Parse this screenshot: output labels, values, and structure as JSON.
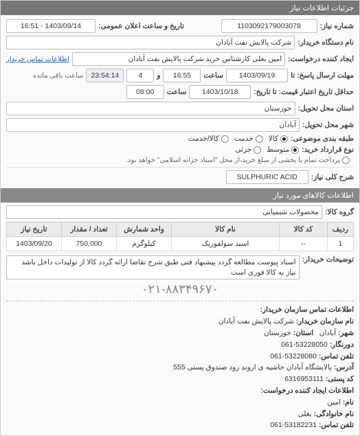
{
  "header": {
    "title": "جزئیات اطلاعات نیاز"
  },
  "form": {
    "request_no_label": "شماره نیاز:",
    "request_no": "1103092179003078",
    "announce_datetime_label": "تاریخ و ساعت اعلان عمومی:",
    "announce_datetime": "1403/09/14 - 16:51",
    "buyer_org_label": "نام دستگاه خریدار:",
    "buyer_org": "شرکت پالایش نفت آبادان",
    "request_creator_label": "ایجاد کننده درخواست:",
    "request_creator": "امین بغلی کارشناس خرید شرکت پالایش نفت آبادان",
    "buyer_contact_link": "اطلاعات تماس خریدار",
    "reply_deadline_label": "مهلت ارسال پاسخ: تا",
    "reply_deadline_date": "1403/09/19",
    "time_label": "ساعت",
    "reply_deadline_time": "16:55",
    "and_label": "و",
    "days_remaining": "4",
    "remaining_time": "23:54:14",
    "remaining_time_suffix": "ساعت باقی مانده",
    "validity_label": "حداقل تاریخ اعتبار قیمت: تا تاریخ:",
    "validity_date": "1403/10/18",
    "validity_time": "08:00",
    "province_label": "استان محل تحویل:",
    "province": "خوزستان",
    "city_label": "شهر محل تحویل:",
    "city": "آبادان",
    "subject_class_label": "طبقه بندی موضوعی:",
    "subject_opts": {
      "goods": "کالا",
      "service": "خدمت",
      "both": "کالا/خدمت"
    },
    "contract_type_label": "نوع قرارداد خرید:",
    "contract_opts": {
      "small": "متوسط",
      "partial": "جزئی"
    },
    "contract_note": "پرداخت تمام یا بخشی از مبلغ خرید،از محل \"اسناد خزانه اسلامی\" خواهد بود.",
    "need_title_label": "شرح کلی نیاز:",
    "need_title": "SULPHURIC ACID"
  },
  "goods": {
    "section_title": "اطلاعات کالاهای مورد نیاز",
    "group_label": "گروه کالا:",
    "group_value": "محصولات شیمیایی",
    "columns": {
      "row": "ردیف",
      "code": "کد کالا",
      "name": "نام کالا",
      "unit": "واحد شمارش",
      "qty": "تعداد / مقدار",
      "need_date": "تاریخ نیاز"
    },
    "rows": [
      {
        "idx": "1",
        "code": "--",
        "name": "اسید سولفوریک",
        "unit": "کیلوگرم",
        "qty": "750,000",
        "need_date": "1403/09/20"
      }
    ]
  },
  "buyer_notes": {
    "label": "توضیحات خریدار:",
    "text": "اسناد پیوست مطالعه گردد پیشنهاد فنی طبق شرح تقاضا ارائه گردد کالا از تولیدات داخل باشد نیاز به کالا فوری است"
  },
  "contact": {
    "section_title": "اطلاعات تماس سازمان خریدار:",
    "org_name_label": "نام سازمان خریدار:",
    "org_name": "شرکت پالایش نفت آبادان",
    "city_label": "شهر:",
    "city": "آبادان",
    "province_label": "استان:",
    "province": "خوزستان",
    "prefix_label": "دورنگار:",
    "prefix": "061-53228050",
    "phone_label": "تلفن تماس:",
    "phone": "061-53228080",
    "address_label": "آدرس:",
    "address": "پالایشگاه آبادان حاشیه ی اروند رود صندوق پستی 555",
    "postal_label": "کد پستی:",
    "postal": "6316953111",
    "creator_section": "اطلاعات ایجاد کننده درخواست:",
    "name_label": "نام:",
    "name": "امین",
    "family_label": "نام خانوادگی:",
    "family": "بغلی",
    "creator_phone_label": "تلفن تماس:",
    "creator_phone": "061-53182231"
  },
  "bignum": "۰۲۱-۸۸۳۴۹۶۷۰"
}
